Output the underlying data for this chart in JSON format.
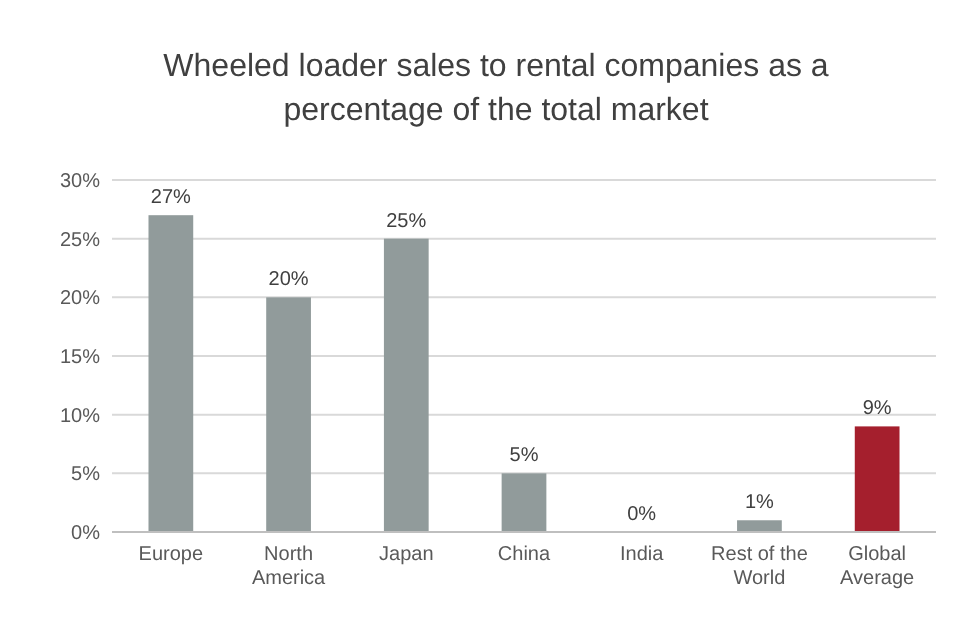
{
  "chart_data": {
    "type": "bar",
    "title": "Wheeled loader sales to rental companies as a percentage of the total market",
    "categories": [
      "Europe",
      "North America",
      "Japan",
      "China",
      "India",
      "Rest of the World",
      "Global Average"
    ],
    "values": [
      27,
      20,
      25,
      5,
      0,
      1,
      9
    ],
    "colors": [
      "#919b9b",
      "#919b9b",
      "#919b9b",
      "#919b9b",
      "#919b9b",
      "#919b9b",
      "#a51f2d"
    ],
    "value_labels": [
      "27%",
      "20%",
      "25%",
      "5%",
      "0%",
      "1%",
      "9%"
    ],
    "ylim": [
      0,
      30
    ],
    "yticks": [
      {
        "value": 0,
        "label": "0%"
      },
      {
        "value": 5,
        "label": "5%"
      },
      {
        "value": 10,
        "label": "10%"
      },
      {
        "value": 15,
        "label": "15%"
      },
      {
        "value": 20,
        "label": "20%"
      },
      {
        "value": 25,
        "label": "25%"
      },
      {
        "value": 30,
        "label": "30%"
      }
    ],
    "grid": "y"
  }
}
